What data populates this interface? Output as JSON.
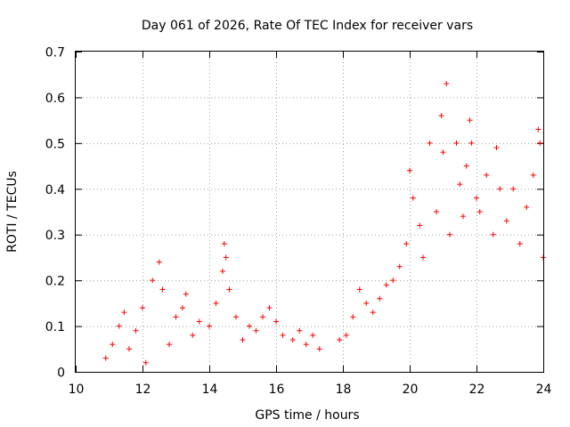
{
  "chart_data": {
    "type": "scatter",
    "title": "Day 061 of 2026, Rate Of TEC Index for receiver vars",
    "xlabel": "GPS time / hours",
    "ylabel": "ROTI / TECUs",
    "xlim": [
      10,
      24
    ],
    "ylim": [
      0,
      0.7
    ],
    "x_ticks": [
      "10",
      "12",
      "14",
      "16",
      "18",
      "20",
      "22",
      "24"
    ],
    "y_ticks": [
      "0",
      "0.1",
      "0.2",
      "0.3",
      "0.4",
      "0.5",
      "0.6",
      "0.7"
    ],
    "grid": true,
    "marker": "plus",
    "marker_color": "#ff0000",
    "series": [
      {
        "name": "ROTI",
        "points": [
          [
            10.9,
            0.03
          ],
          [
            11.1,
            0.06
          ],
          [
            11.3,
            0.1
          ],
          [
            11.45,
            0.13
          ],
          [
            11.6,
            0.05
          ],
          [
            11.8,
            0.09
          ],
          [
            12.0,
            0.14
          ],
          [
            12.1,
            0.02
          ],
          [
            12.3,
            0.2
          ],
          [
            12.5,
            0.24
          ],
          [
            12.6,
            0.18
          ],
          [
            12.8,
            0.06
          ],
          [
            13.0,
            0.12
          ],
          [
            13.2,
            0.14
          ],
          [
            13.3,
            0.17
          ],
          [
            13.5,
            0.08
          ],
          [
            13.7,
            0.11
          ],
          [
            14.0,
            0.1
          ],
          [
            14.2,
            0.15
          ],
          [
            14.4,
            0.22
          ],
          [
            14.45,
            0.28
          ],
          [
            14.5,
            0.25
          ],
          [
            14.6,
            0.18
          ],
          [
            14.8,
            0.12
          ],
          [
            15.0,
            0.07
          ],
          [
            15.2,
            0.1
          ],
          [
            15.4,
            0.09
          ],
          [
            15.6,
            0.12
          ],
          [
            15.8,
            0.14
          ],
          [
            16.0,
            0.11
          ],
          [
            16.2,
            0.08
          ],
          [
            16.5,
            0.07
          ],
          [
            16.7,
            0.09
          ],
          [
            16.9,
            0.06
          ],
          [
            17.1,
            0.08
          ],
          [
            17.3,
            0.05
          ],
          [
            17.9,
            0.07
          ],
          [
            18.1,
            0.08
          ],
          [
            18.3,
            0.12
          ],
          [
            18.5,
            0.18
          ],
          [
            18.7,
            0.15
          ],
          [
            18.9,
            0.13
          ],
          [
            19.1,
            0.16
          ],
          [
            19.3,
            0.19
          ],
          [
            19.5,
            0.2
          ],
          [
            19.7,
            0.23
          ],
          [
            19.9,
            0.28
          ],
          [
            20.0,
            0.44
          ],
          [
            20.1,
            0.38
          ],
          [
            20.3,
            0.32
          ],
          [
            20.4,
            0.25
          ],
          [
            20.6,
            0.5
          ],
          [
            20.8,
            0.35
          ],
          [
            20.95,
            0.56
          ],
          [
            21.0,
            0.48
          ],
          [
            21.1,
            0.63
          ],
          [
            21.2,
            0.3
          ],
          [
            21.4,
            0.5
          ],
          [
            21.5,
            0.41
          ],
          [
            21.6,
            0.34
          ],
          [
            21.7,
            0.45
          ],
          [
            21.8,
            0.55
          ],
          [
            21.85,
            0.5
          ],
          [
            22.0,
            0.38
          ],
          [
            22.1,
            0.35
          ],
          [
            22.3,
            0.43
          ],
          [
            22.5,
            0.3
          ],
          [
            22.6,
            0.49
          ],
          [
            22.7,
            0.4
          ],
          [
            22.9,
            0.33
          ],
          [
            23.1,
            0.4
          ],
          [
            23.3,
            0.28
          ],
          [
            23.5,
            0.36
          ],
          [
            23.7,
            0.43
          ],
          [
            23.85,
            0.53
          ],
          [
            23.9,
            0.5
          ],
          [
            24.0,
            0.25
          ]
        ]
      }
    ]
  }
}
